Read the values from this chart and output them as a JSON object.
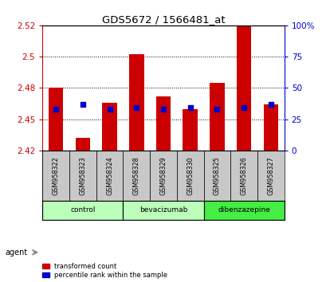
{
  "title": "GDS5672 / 1566481_at",
  "samples": [
    "GSM958322",
    "GSM958323",
    "GSM958324",
    "GSM958328",
    "GSM958329",
    "GSM958330",
    "GSM958325",
    "GSM958326",
    "GSM958327"
  ],
  "red_values": [
    2.475,
    2.435,
    2.463,
    2.502,
    2.468,
    2.458,
    2.479,
    2.527,
    2.462
  ],
  "blue_values": [
    2.458,
    2.462,
    2.458,
    2.459,
    2.458,
    2.459,
    2.458,
    2.459,
    2.462
  ],
  "ymin": 2.425,
  "ymax": 2.525,
  "yticks_left": [
    2.425,
    2.45,
    2.475,
    2.5,
    2.525
  ],
  "yticks_right_vals": [
    0,
    25,
    50,
    75,
    100
  ],
  "yticks_right_labels": [
    "0",
    "25",
    "50",
    "75",
    "100%"
  ],
  "groups": [
    {
      "label": "control",
      "indices": [
        0,
        1,
        2
      ],
      "color": "#bbffbb"
    },
    {
      "label": "bevacizumab",
      "indices": [
        3,
        4,
        5
      ],
      "color": "#bbffbb"
    },
    {
      "label": "dibenzazepine",
      "indices": [
        6,
        7,
        8
      ],
      "color": "#44ee44"
    }
  ],
  "agent_label": "agent",
  "red_color": "#cc0000",
  "blue_color": "#0000cc",
  "bar_bg_color": "#c8c8c8",
  "legend_red": "transformed count",
  "legend_blue": "percentile rank within the sample",
  "left_axis_color": "#cc0000",
  "right_axis_color": "#0000cc",
  "bar_width": 0.55
}
